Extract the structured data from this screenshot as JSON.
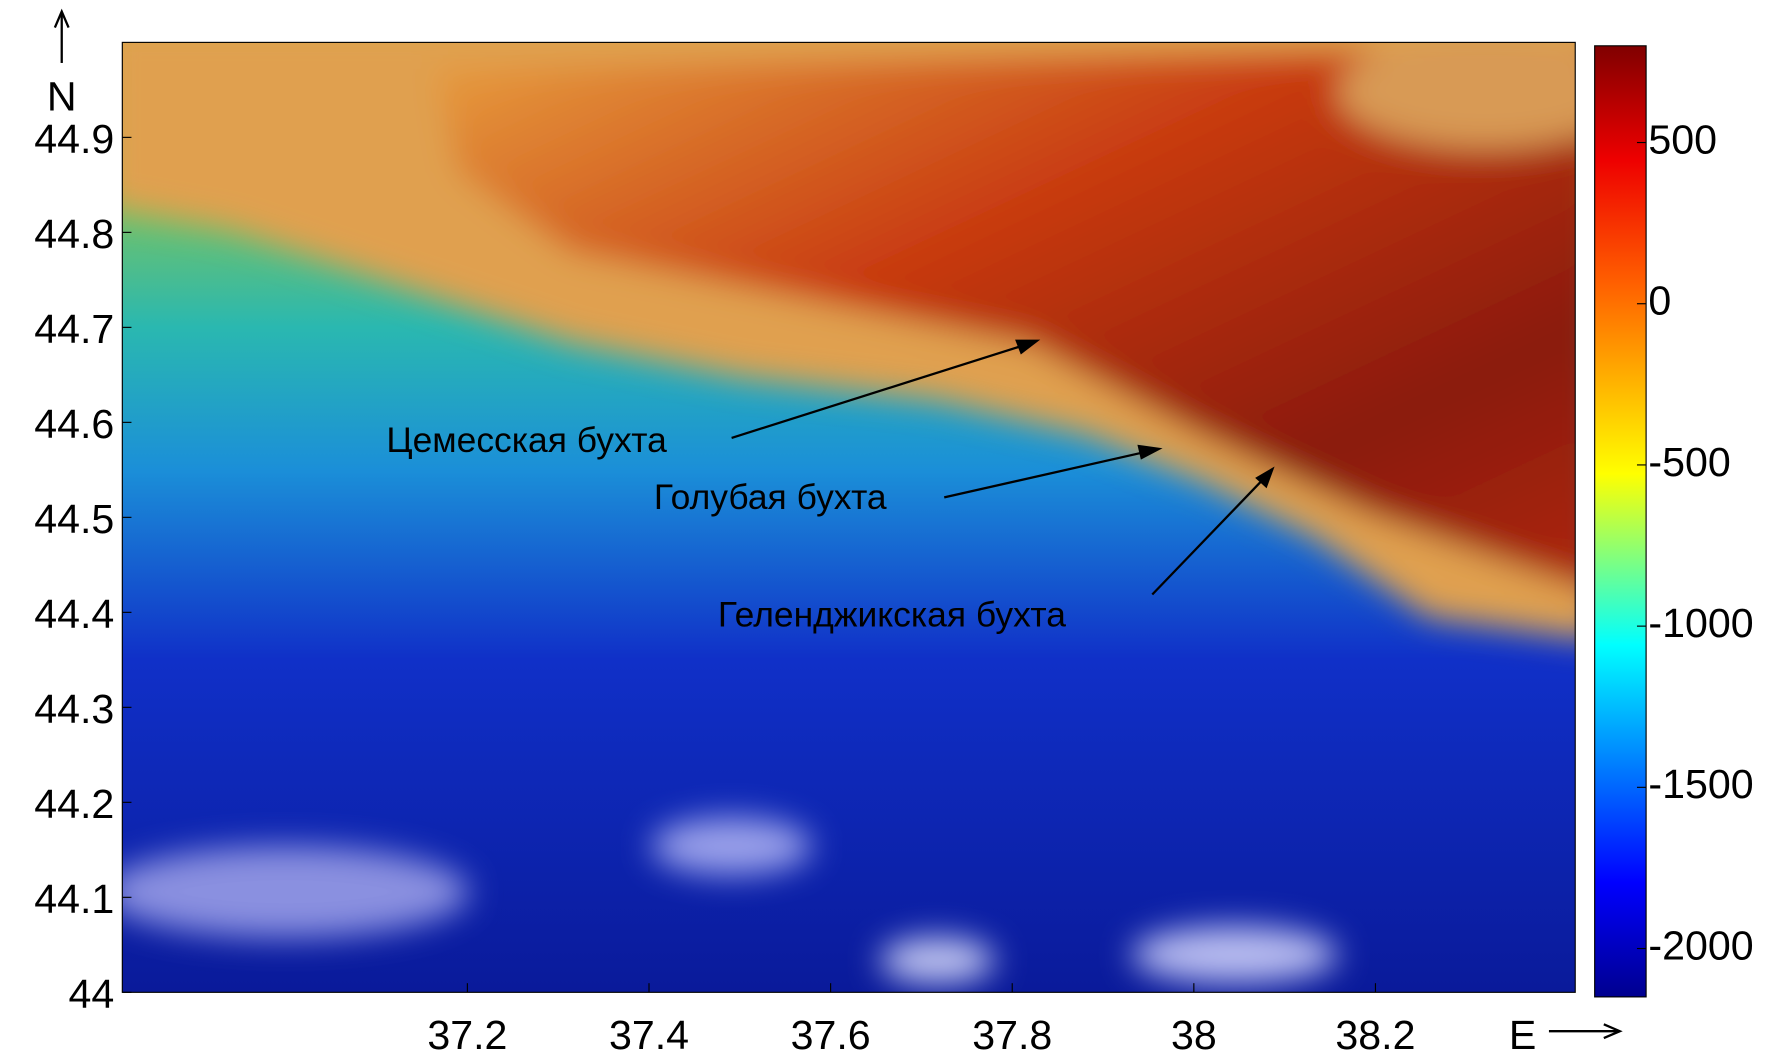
{
  "chart_data": {
    "type": "heatmap",
    "xlabel": "E",
    "ylabel": "N",
    "xlim": [
      36.82,
      38.42
    ],
    "xticks": [
      37.2,
      37.4,
      37.6,
      37.8,
      38,
      38.2
    ],
    "ylim": [
      44,
      45
    ],
    "yticks": [
      44,
      44.1,
      44.2,
      44.3,
      44.4,
      44.5,
      44.6,
      44.7,
      44.8,
      44.9
    ],
    "clim": [
      -2150,
      800
    ],
    "cticks": [
      500,
      0,
      -500,
      -1000,
      -1500,
      -2000
    ],
    "annotations": [
      "Цемесская бухта",
      "Голубая бухта",
      "Геленджикская бухта"
    ]
  }
}
